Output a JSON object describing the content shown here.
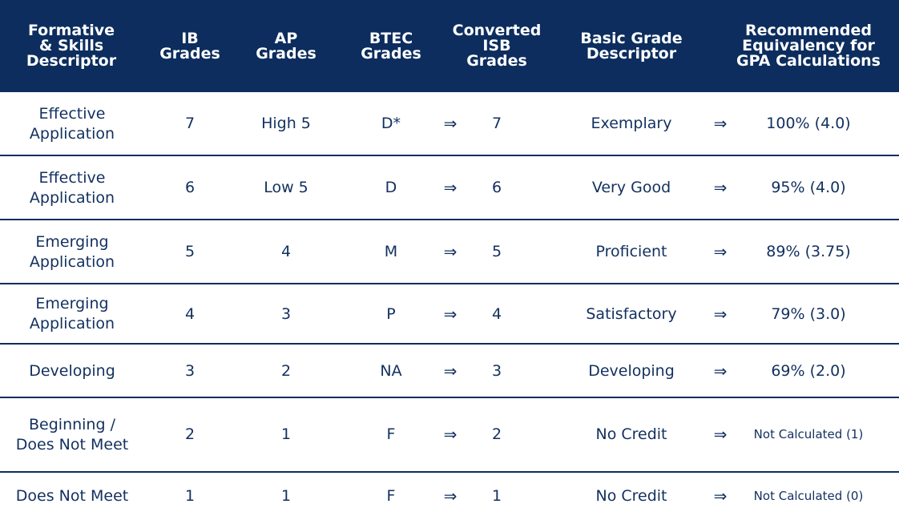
{
  "headers": [
    "Formative\n& Skills\nDescriptor",
    "IB\nGrades",
    "AP\nGrades",
    "BTEC\nGrades",
    "Converted\nISB\nGrades",
    "Basic Grade\nDescriptor",
    "Recommended\nEquivalency for\nGPA Calculations"
  ],
  "arrow": "⇒",
  "rows": [
    [
      "Effective\nApplication",
      "7",
      "High 5",
      "D*",
      "7",
      "Exemplary",
      "100% (4.0)"
    ],
    [
      "Effective\nApplication",
      "6",
      "Low 5",
      "D",
      "6",
      "Very Good",
      "95% (4.0)"
    ],
    [
      "Emerging\nApplication",
      "5",
      "4",
      "M",
      "5",
      "Proficient",
      "89% (3.75)"
    ],
    [
      "Emerging\nApplication",
      "4",
      "3",
      "P",
      "4",
      "Satisfactory",
      "79% (3.0)"
    ],
    [
      "Developing",
      "3",
      "2",
      "NA",
      "3",
      "Developing",
      "69% (2.0)"
    ],
    [
      "Beginning /\nDoes Not Meet",
      "2",
      "1",
      "F",
      "2",
      "No Credit",
      "Not Calculated (1)"
    ],
    [
      "Does Not Meet",
      "1",
      "1",
      "F",
      "1",
      "No Credit",
      "Not Calculated (0)"
    ]
  ],
  "colors": {
    "header_bg": "#0c2d5e",
    "text": "#12305f",
    "rule": "#0c2d5e"
  }
}
